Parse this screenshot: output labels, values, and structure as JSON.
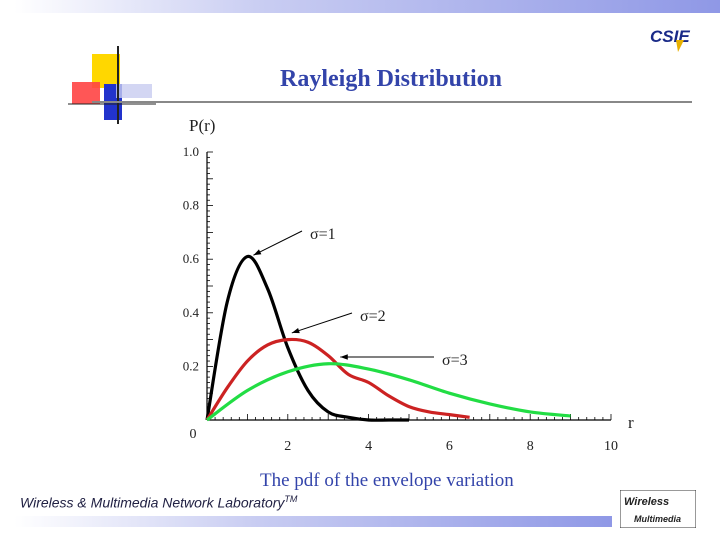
{
  "slide": {
    "title": "Rayleigh Distribution",
    "caption": "The pdf of the envelope variation",
    "footer": "Wireless & Multimedia Network Laboratory",
    "footer_tm": "TM",
    "logo_cse_text": "CSIE",
    "logo_wm_text_1": "Wireless",
    "logo_wm_text_2": "Multimedia",
    "accent_blue": "#3344aa",
    "deco_yellow": "#ffd700",
    "deco_red": "#ff4444",
    "deco_blue": "#2233cc"
  },
  "chart_data": {
    "type": "line",
    "ylabel": "P(r)",
    "xlabel": "r",
    "xlim": [
      0,
      10
    ],
    "ylim": [
      0,
      1.0
    ],
    "xticks": [
      2,
      4,
      6,
      8,
      10
    ],
    "yticks": [
      0.2,
      0.4,
      0.6,
      0.8,
      1.0
    ],
    "origin_label": "0",
    "series": [
      {
        "name": "σ=1",
        "color": "#000000",
        "x": [
          0,
          0.5,
          1,
          1.5,
          2,
          2.5,
          3,
          3.5,
          4,
          4.5,
          5
        ],
        "values": [
          0,
          0.44,
          0.61,
          0.49,
          0.27,
          0.11,
          0.03,
          0.01,
          0,
          0,
          0
        ]
      },
      {
        "name": "σ=2",
        "color": "#cc2222",
        "x": [
          0,
          0.5,
          1,
          1.5,
          2,
          2.5,
          3,
          3.5,
          4,
          4.5,
          5,
          5.5,
          6,
          6.5
        ],
        "values": [
          0,
          0.12,
          0.22,
          0.28,
          0.3,
          0.29,
          0.24,
          0.17,
          0.14,
          0.09,
          0.05,
          0.03,
          0.02,
          0.01
        ]
      },
      {
        "name": "σ=3",
        "color": "#22dd44",
        "x": [
          0,
          1,
          2,
          3,
          4,
          5,
          6,
          7,
          8,
          9
        ],
        "values": [
          0,
          0.11,
          0.18,
          0.21,
          0.19,
          0.15,
          0.1,
          0.06,
          0.03,
          0.015
        ]
      }
    ],
    "annotations": [
      "σ=1",
      "σ=2",
      "σ=3"
    ]
  }
}
